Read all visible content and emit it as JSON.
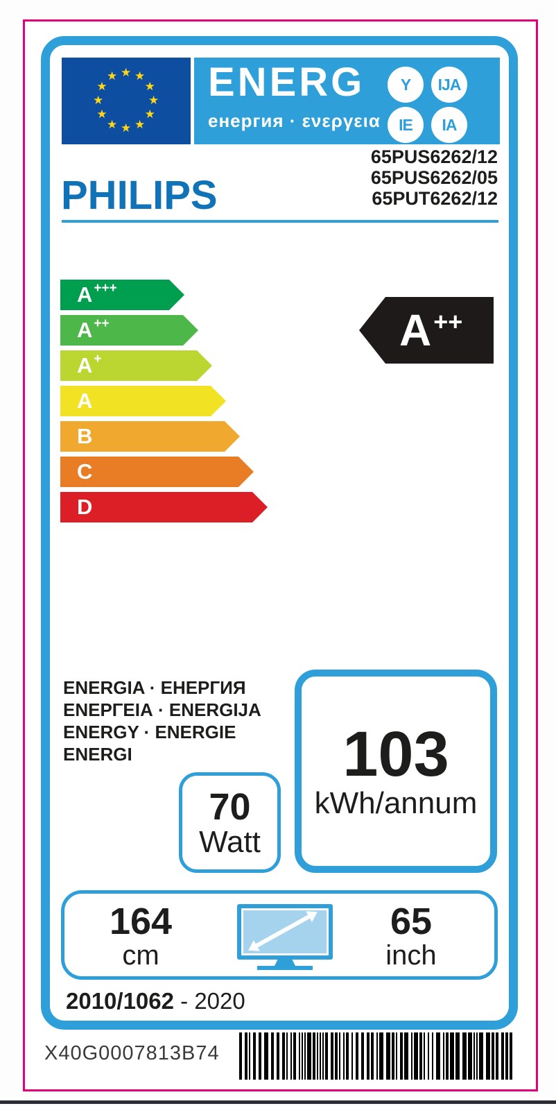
{
  "label": {
    "brand": "PHILIPS",
    "models": [
      "65PUS6262/12",
      "65PUS6262/05",
      "65PUT6262/12"
    ],
    "header": {
      "energ_main": "ENERG",
      "energ_sub": "енергия · ενεργεια",
      "circle_badges": [
        "Y",
        "IJA",
        "IE",
        "IA"
      ],
      "eu_flag": "eu-flag-icon"
    },
    "efficiency_scale": {
      "classes": [
        {
          "grade": "A",
          "sup": "+++",
          "color": "#009e4f"
        },
        {
          "grade": "A",
          "sup": "++",
          "color": "#4db849"
        },
        {
          "grade": "A",
          "sup": "+",
          "color": "#bcd631"
        },
        {
          "grade": "A",
          "sup": "",
          "color": "#f2e224"
        },
        {
          "grade": "B",
          "sup": "",
          "color": "#f0a82f"
        },
        {
          "grade": "C",
          "sup": "",
          "color": "#e87d25"
        },
        {
          "grade": "D",
          "sup": "",
          "color": "#dc1f26"
        }
      ],
      "rating": {
        "grade": "A",
        "sup": "++",
        "arrow_color": "#1e1a19"
      }
    },
    "energy_words": [
      "ENERGIA · ЕНЕРГИЯ",
      "ΕΝΕΡΓΕΙΑ · ENERGIJA",
      "ENERGY · ENERGIE",
      "ENERGI"
    ],
    "power": {
      "value": "70",
      "unit": "Watt"
    },
    "annual_consumption": {
      "value": "103",
      "unit": "kWh/annum"
    },
    "screen_size": {
      "cm_value": "164",
      "cm_unit": "cm",
      "inch_value": "65",
      "inch_unit": "inch",
      "icon": "tv-diagonal-icon"
    },
    "regulation": {
      "bold": "2010/1062",
      "rest": " - 2020"
    },
    "barcode_text": "X40G0007813B74",
    "colors": {
      "accent_blue": "#2e9fd8",
      "magenta_border": "#e2017b",
      "philips_blue": "#1173b7",
      "eu_flag_blue": "#0d4ea0",
      "star_yellow": "#ffd617",
      "screen_fill": "#a5d3ee",
      "text_black": "#1d1d1b"
    }
  }
}
